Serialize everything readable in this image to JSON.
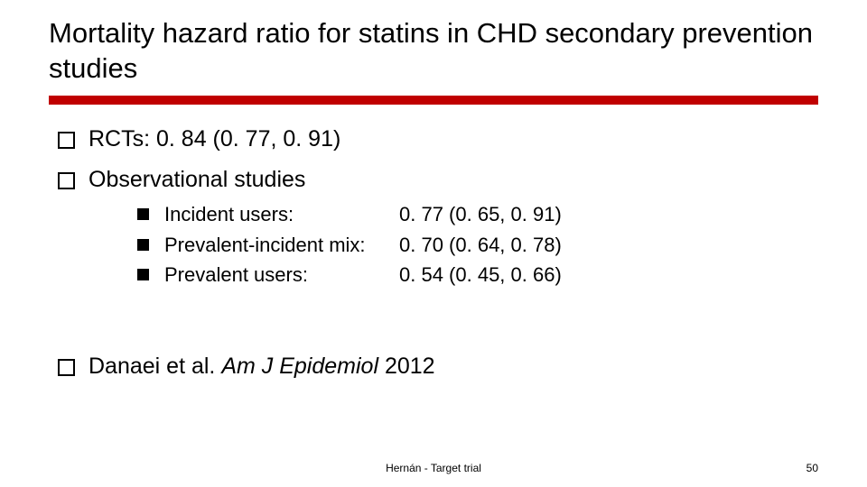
{
  "title": "Mortality hazard ratio for statins in CHD secondary prevention studies",
  "rule_color": "#c00000",
  "bullets": {
    "rcts": "RCTs: 0. 84 (0. 77, 0. 91)",
    "obs_label": "Observational studies",
    "sub": [
      {
        "label": "Incident users:",
        "value": "0. 77 (0. 65, 0. 91)"
      },
      {
        "label": "Prevalent-incident mix:",
        "value": "0. 70 (0. 64, 0. 78)"
      },
      {
        "label": "Prevalent users:",
        "value": "0. 54 (0. 45, 0. 66)"
      }
    ],
    "citation_prefix": "Danaei et al. ",
    "citation_italic": "Am J Epidemiol",
    "citation_suffix": " 2012"
  },
  "footer": "Hernán - Target trial",
  "page_number": "50",
  "fonts": {
    "title_size_pt": 31,
    "l1_size_pt": 25,
    "l2_size_pt": 22,
    "footer_size_pt": 12
  },
  "colors": {
    "text": "#000000",
    "background": "#ffffff",
    "accent": "#c00000"
  }
}
